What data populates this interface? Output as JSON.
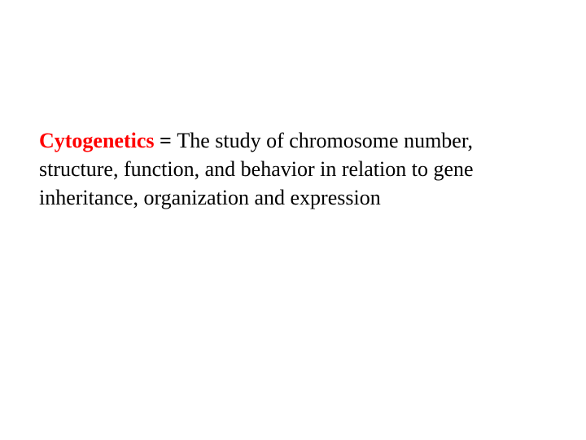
{
  "slide": {
    "term": "Cytogenetics",
    "equals": " = ",
    "definition": "The study of chromosome number, structure, function, and behavior in relation to gene inheritance, organization and expression",
    "colors": {
      "term_color": "#ff0000",
      "text_color": "#000000",
      "background": "#ffffff"
    },
    "typography": {
      "font_family": "Comic Sans MS",
      "font_size_pt": 26,
      "term_weight": "bold",
      "line_height": 1.35
    }
  }
}
